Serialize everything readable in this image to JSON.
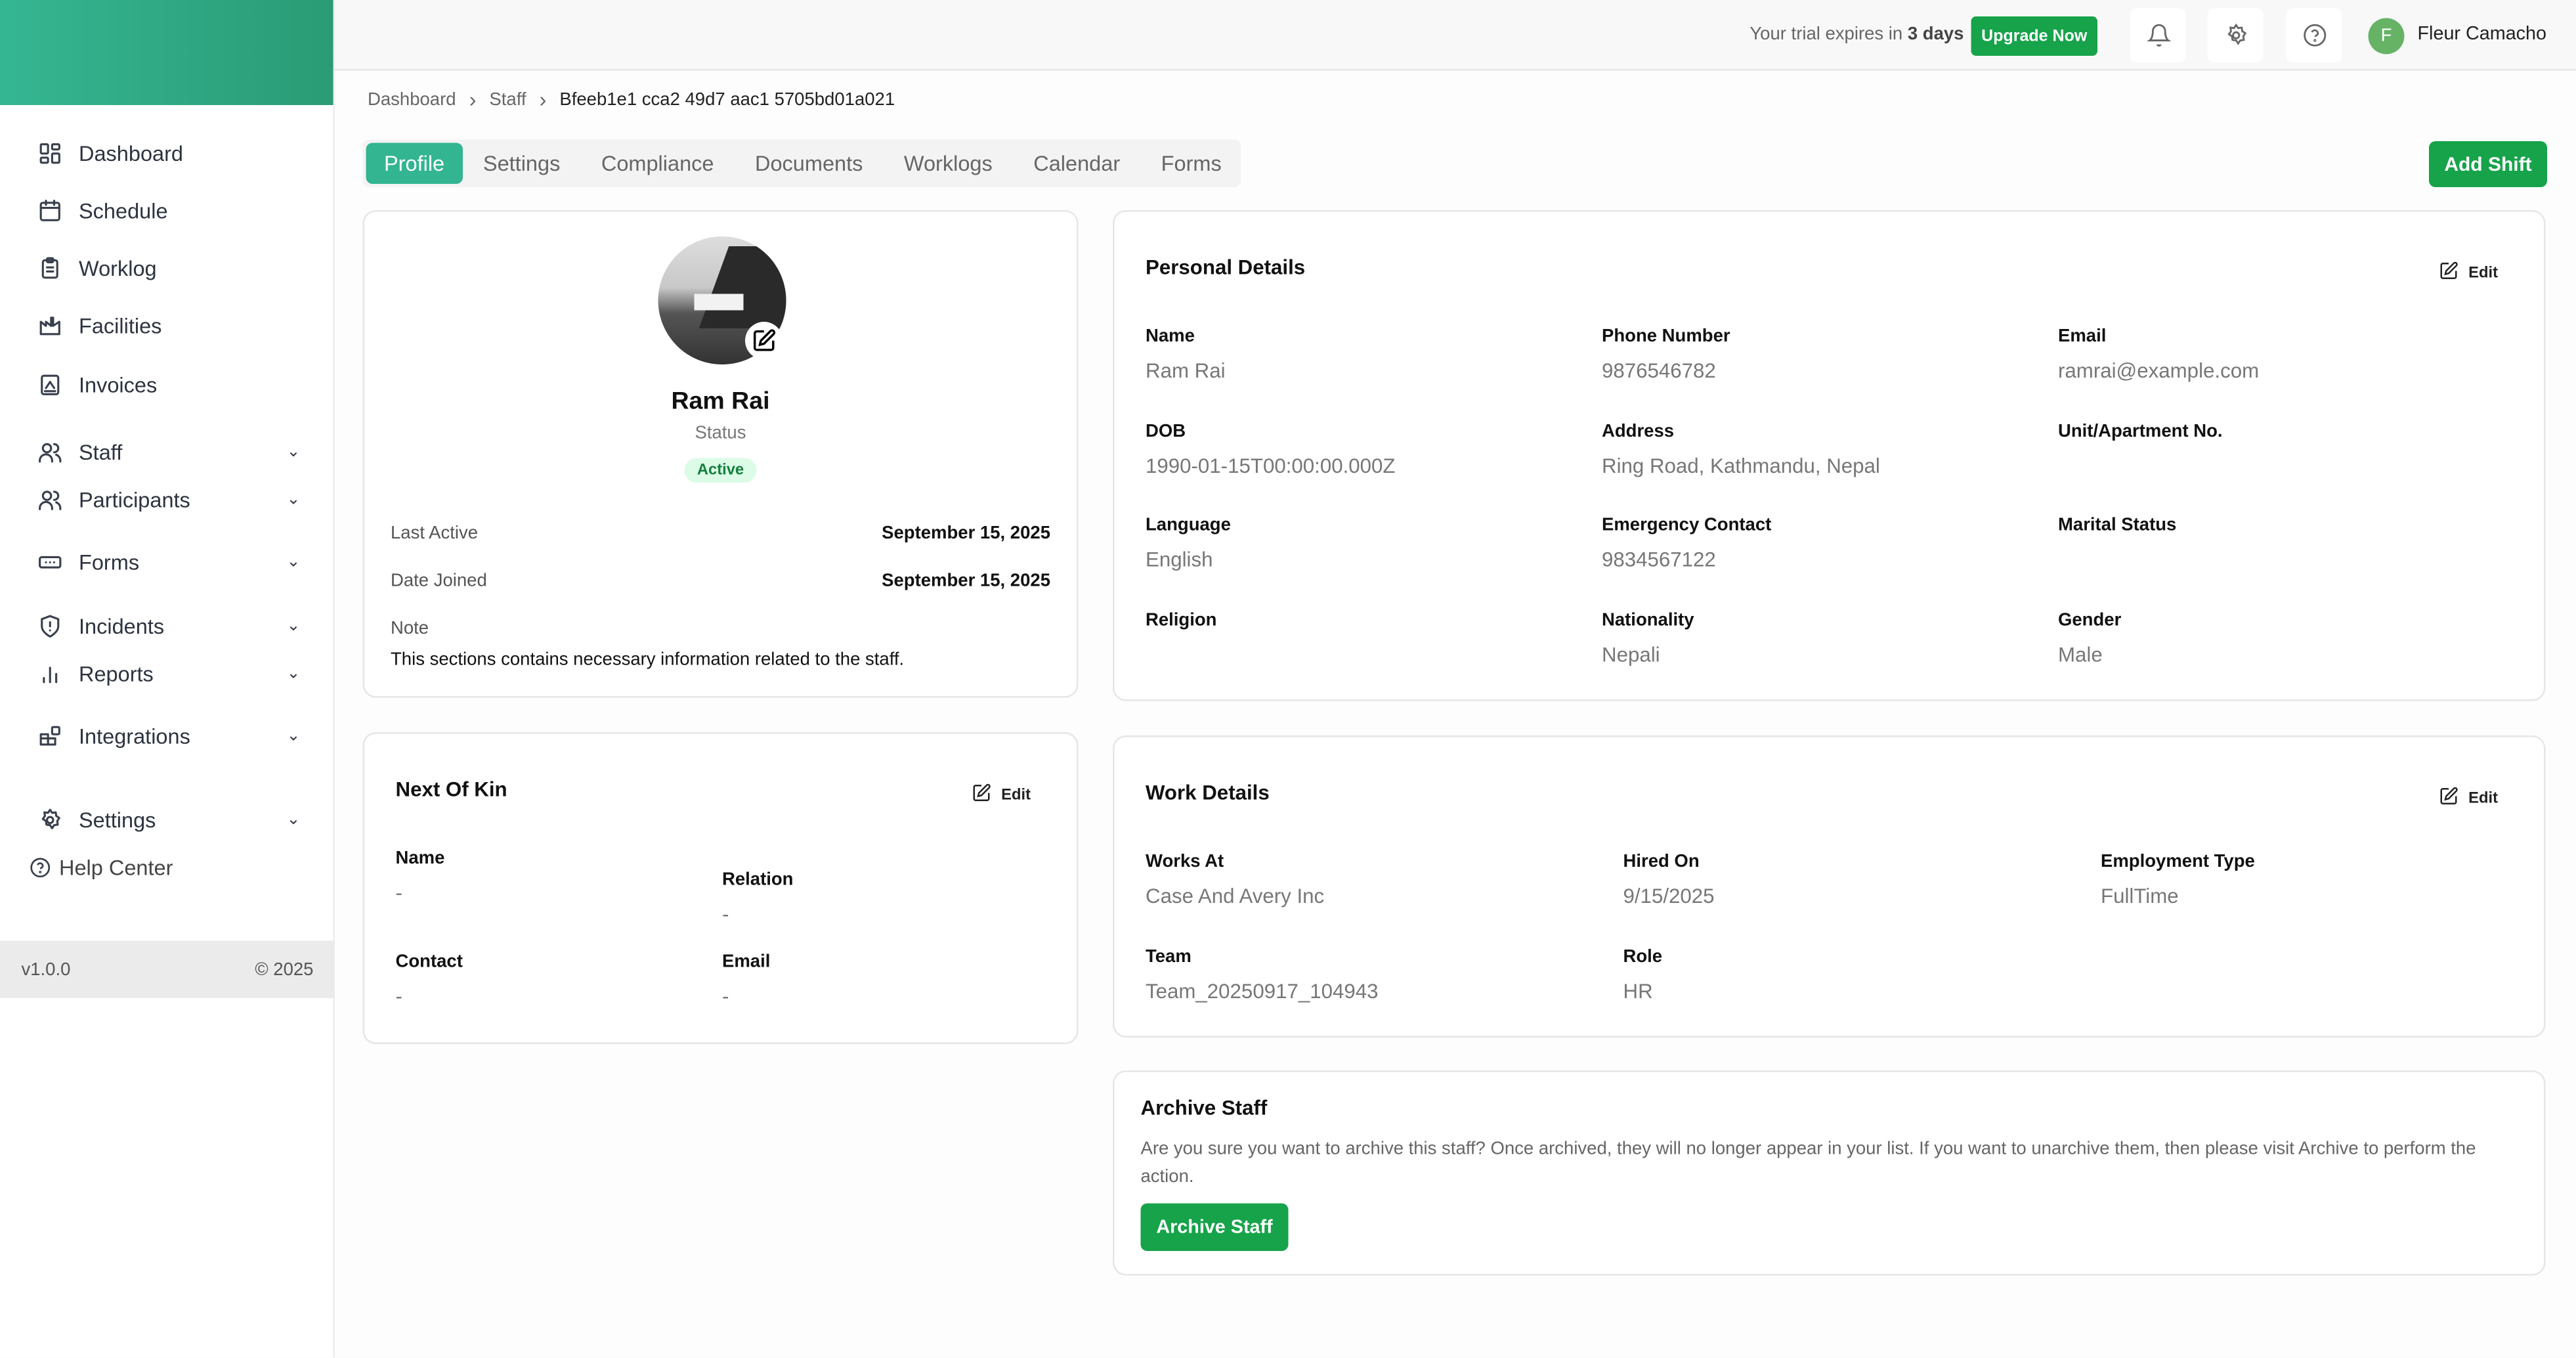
{
  "sidebar": {
    "items": [
      {
        "label": "Dashboard",
        "icon": "dashboard-icon"
      },
      {
        "label": "Schedule",
        "icon": "calendar-icon"
      },
      {
        "label": "Worklog",
        "icon": "clipboard-icon"
      },
      {
        "label": "Facilities",
        "icon": "factory-icon"
      },
      {
        "label": "Invoices",
        "icon": "invoice-icon"
      },
      {
        "label": "Staff",
        "icon": "users-icon"
      },
      {
        "label": "Participants",
        "icon": "users-icon"
      },
      {
        "label": "Forms",
        "icon": "form-icon"
      },
      {
        "label": "Incidents",
        "icon": "shield-alert-icon"
      },
      {
        "label": "Reports",
        "icon": "bar-chart-icon"
      },
      {
        "label": "Integrations",
        "icon": "blocks-icon"
      },
      {
        "label": "Settings",
        "icon": "gear-icon"
      }
    ],
    "help": "Help Center",
    "version": "v1.0.0",
    "copyright": "© 2025"
  },
  "topbar": {
    "trial_prefix": "Your trial expires in",
    "trial_days": "3 days",
    "upgrade": "Upgrade Now",
    "user_initial": "F",
    "user_name": "Fleur Camacho"
  },
  "breadcrumb": [
    "Dashboard",
    "Staff",
    "Bfeeb1e1 cca2 49d7 aac1 5705bd01a021"
  ],
  "tabs": [
    "Profile",
    "Settings",
    "Compliance",
    "Documents",
    "Worklogs",
    "Calendar",
    "Forms"
  ],
  "add_shift": "Add Shift",
  "profile": {
    "name": "Ram Rai",
    "status_label": "Status",
    "status": "Active",
    "last_active_label": "Last Active",
    "last_active": "September 15, 2025",
    "date_joined_label": "Date Joined",
    "date_joined": "September 15, 2025",
    "note_label": "Note",
    "note": "This sections contains necessary information related to the staff."
  },
  "personal": {
    "title": "Personal Details",
    "edit": "Edit",
    "fields": [
      {
        "label": "Name",
        "value": "Ram Rai"
      },
      {
        "label": "Phone Number",
        "value": "9876546782"
      },
      {
        "label": "Email",
        "value": "ramrai@example.com"
      },
      {
        "label": "DOB",
        "value": "1990-01-15T00:00:00.000Z"
      },
      {
        "label": "Address",
        "value": "Ring Road, Kathmandu, Nepal"
      },
      {
        "label": "Unit/Apartment No.",
        "value": ""
      },
      {
        "label": "Language",
        "value": "English"
      },
      {
        "label": "Emergency Contact",
        "value": "9834567122"
      },
      {
        "label": "Marital Status",
        "value": ""
      },
      {
        "label": "Religion",
        "value": ""
      },
      {
        "label": "Nationality",
        "value": "Nepali"
      },
      {
        "label": "Gender",
        "value": "Male"
      }
    ]
  },
  "kin": {
    "title": "Next Of Kin",
    "edit": "Edit",
    "fields": [
      {
        "label": "Name",
        "value": "-"
      },
      {
        "label": "Relation",
        "value": "-"
      },
      {
        "label": "Contact",
        "value": "-"
      },
      {
        "label": "Email",
        "value": "-"
      }
    ]
  },
  "work": {
    "title": "Work Details",
    "edit": "Edit",
    "fields": [
      {
        "label": "Works At",
        "value": "Case And Avery Inc"
      },
      {
        "label": "Hired On",
        "value": "9/15/2025"
      },
      {
        "label": "Employment Type",
        "value": "FullTime"
      },
      {
        "label": "Team",
        "value": "Team_20250917_104943"
      },
      {
        "label": "Role",
        "value": "HR"
      }
    ]
  },
  "archive": {
    "title": "Archive Staff",
    "text": "Are you sure you want to archive this staff? Once archived, they will no longer appear in your list. If you want to unarchive them, then please visit Archive to perform the action.",
    "button": "Archive Staff"
  },
  "colors": {
    "brand": "#33b592",
    "primary_button": "#16a34a",
    "active_badge_bg": "#dcfce7",
    "active_badge_text": "#15803d"
  }
}
